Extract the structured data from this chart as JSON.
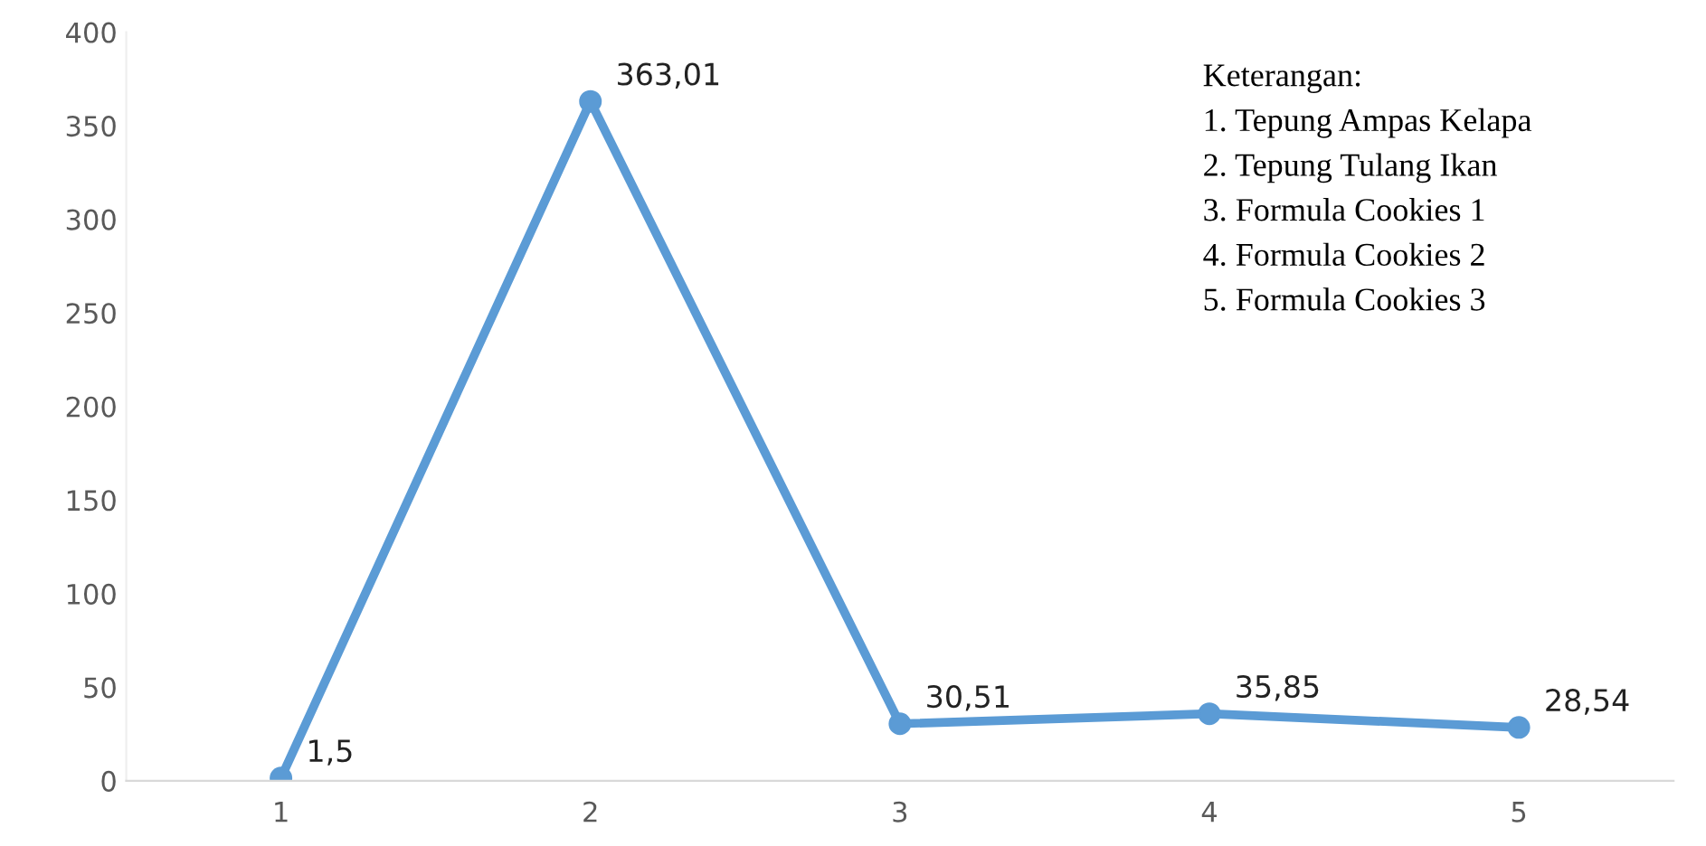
{
  "chart_data": {
    "type": "line",
    "categories": [
      "1",
      "2",
      "3",
      "4",
      "5"
    ],
    "series": [
      {
        "color": "#5b9bd5",
        "values": [
          1.5,
          363.01,
          30.51,
          35.85,
          28.54
        ],
        "value_labels": [
          "1,5",
          "363,01",
          "30,51",
          "35,85",
          "28,54"
        ]
      }
    ],
    "ylim": [
      0,
      400
    ],
    "yticks": [
      0,
      50,
      100,
      150,
      200,
      250,
      300,
      350,
      400
    ],
    "grid": false,
    "marker": "circle",
    "line_style": "solid",
    "annotations": [
      "Keterangan:",
      "1. Tepung Ampas Kelapa",
      "2. Tepung Tulang Ikan",
      "3. Formula Cookies 1",
      "4. Formula Cookies 2",
      "5. Formula Cookies 3"
    ]
  }
}
